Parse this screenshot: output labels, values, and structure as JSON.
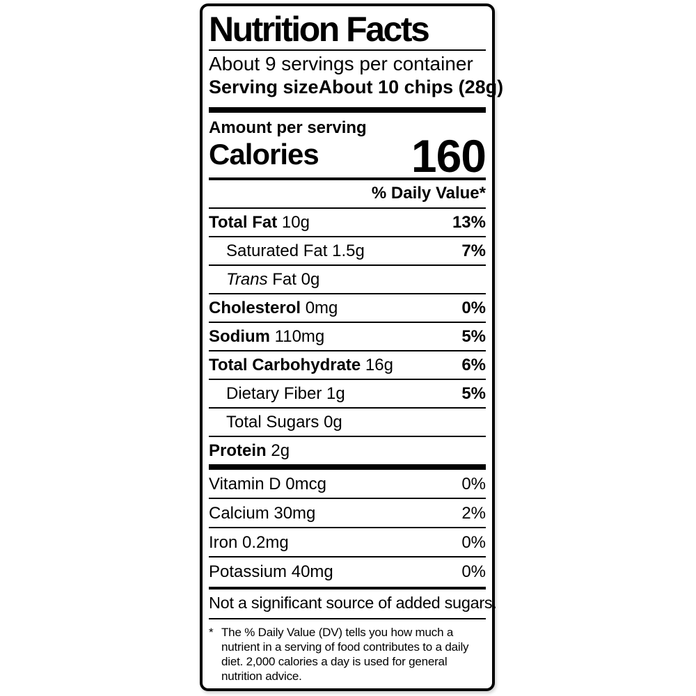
{
  "colors": {
    "ink": "#000000",
    "paper": "#ffffff"
  },
  "label": {
    "title": "Nutrition Facts",
    "servings_per_container": "About 9 servings per container",
    "serving_size": {
      "label": "Serving size",
      "value": "About 10 chips (28g)"
    },
    "calories_section": {
      "amount_per_serving": "Amount per serving",
      "calories_label": "Calories",
      "calories_value": "160"
    },
    "daily_value_header": "% Daily Value*",
    "nutrients": [
      {
        "name": "Total Fat",
        "amount": "10g",
        "dv": "13%"
      },
      {
        "name": "Saturated Fat",
        "amount": "1.5g",
        "dv": "7%"
      },
      {
        "name_italic": "Trans",
        "name_rest": "Fat",
        "amount": "0g",
        "dv": ""
      },
      {
        "name": "Cholesterol",
        "amount": "0mg",
        "dv": "0%"
      },
      {
        "name": "Sodium",
        "amount": "110mg",
        "dv": "5%"
      },
      {
        "name": "Total Carbohydrate",
        "amount": "16g",
        "dv": "6%"
      },
      {
        "name": "Dietary Fiber",
        "amount": "1g",
        "dv": "5%"
      },
      {
        "name": "Total Sugars",
        "amount": "0g",
        "dv": ""
      },
      {
        "name": "Protein",
        "amount": "2g",
        "dv": ""
      }
    ],
    "micronutrients": [
      {
        "name": "Vitamin D",
        "amount": "0mcg",
        "dv": "0%"
      },
      {
        "name": "Calcium",
        "amount": "30mg",
        "dv": "2%"
      },
      {
        "name": "Iron",
        "amount": "0.2mg",
        "dv": "0%"
      },
      {
        "name": "Potassium",
        "amount": "40mg",
        "dv": "0%"
      }
    ],
    "not_significant_note": "Not a significant source of added sugars.",
    "footnote_marker": "*",
    "footnote_text": "The % Daily Value (DV) tells you how much a nutrient in a serving of food contributes to a daily diet. 2,000 calories a day is used for general nutrition advice."
  }
}
